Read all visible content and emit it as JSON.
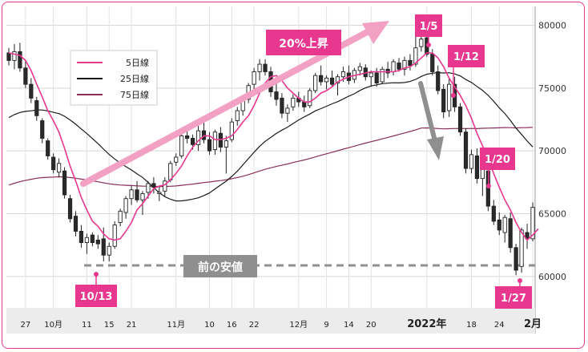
{
  "chart_data": {
    "type": "candlestick",
    "ylim": [
      57500,
      81500
    ],
    "yticks": [
      60000,
      65000,
      70000,
      75000,
      80000
    ],
    "ytick_labels": [
      "60000",
      "65000",
      "70000",
      "75000",
      "80000"
    ],
    "xtick_labels": [
      {
        "i": 3,
        "label": "27"
      },
      {
        "i": 8,
        "label": "10月"
      },
      {
        "i": 14,
        "label": "11"
      },
      {
        "i": 18,
        "label": "15"
      },
      {
        "i": 22,
        "label": "21"
      },
      {
        "i": 30,
        "label": "11月"
      },
      {
        "i": 36,
        "label": "10"
      },
      {
        "i": 40,
        "label": "16"
      },
      {
        "i": 44,
        "label": "22"
      },
      {
        "i": 52,
        "label": "12月"
      },
      {
        "i": 57,
        "label": "9"
      },
      {
        "i": 61,
        "label": "14"
      },
      {
        "i": 65,
        "label": "20"
      },
      {
        "i": 75,
        "label": "2022年",
        "big": true
      },
      {
        "i": 83,
        "label": "18"
      },
      {
        "i": 88,
        "label": "24"
      },
      {
        "i": 94,
        "label": "2月",
        "big": true
      }
    ],
    "legend": [
      {
        "label": "5日線",
        "color": "#e8378f"
      },
      {
        "label": "25日線",
        "color": "#1a1a1a"
      },
      {
        "label": "75日線",
        "color": "#8a2d5a"
      }
    ],
    "candles": [
      [
        77800,
        78200,
        76800,
        77200
      ],
      [
        77200,
        78500,
        76500,
        77900
      ],
      [
        77900,
        78600,
        76300,
        76600
      ],
      [
        76600,
        77200,
        75000,
        75300
      ],
      [
        75300,
        75800,
        73800,
        74200
      ],
      [
        74000,
        74300,
        72400,
        72800
      ],
      [
        72400,
        72600,
        70600,
        71000
      ],
      [
        70800,
        71000,
        69300,
        69600
      ],
      [
        69500,
        69800,
        68200,
        68500
      ],
      [
        68300,
        69400,
        67900,
        69000
      ],
      [
        68400,
        68700,
        66200,
        66500
      ],
      [
        66200,
        66500,
        64300,
        64600
      ],
      [
        64800,
        65200,
        63200,
        63600
      ],
      [
        63600,
        64100,
        62300,
        62700
      ],
      [
        62700,
        63400,
        61800,
        63100
      ],
      [
        63300,
        63500,
        62400,
        62700
      ],
      [
        62900,
        63300,
        62200,
        62600
      ],
      [
        63000,
        63900,
        61200,
        61700
      ],
      [
        61700,
        62700,
        61200,
        62400
      ],
      [
        62400,
        64400,
        62200,
        64100
      ],
      [
        64300,
        65400,
        64000,
        65200
      ],
      [
        65100,
        66400,
        64600,
        66200
      ],
      [
        66200,
        67200,
        65700,
        66900
      ],
      [
        66900,
        67600,
        65900,
        66100
      ],
      [
        66100,
        66800,
        64900,
        66600
      ],
      [
        66700,
        67600,
        66200,
        67400
      ],
      [
        67400,
        67900,
        66600,
        67100
      ],
      [
        66600,
        67200,
        66000,
        66700
      ],
      [
        66800,
        67900,
        66400,
        67600
      ],
      [
        67700,
        69200,
        67500,
        69000
      ],
      [
        69100,
        69800,
        68800,
        69500
      ],
      [
        69600,
        71400,
        69400,
        71200
      ],
      [
        71200,
        71800,
        70600,
        71000
      ],
      [
        71000,
        71300,
        70100,
        70500
      ],
      [
        70500,
        72000,
        70000,
        71600
      ],
      [
        71600,
        72300,
        70600,
        70900
      ],
      [
        70900,
        71500,
        69700,
        70000
      ],
      [
        70100,
        71700,
        69700,
        71500
      ],
      [
        71400,
        71900,
        69900,
        70300
      ],
      [
        70300,
        71200,
        68200,
        70800
      ],
      [
        70900,
        72600,
        70700,
        72300
      ],
      [
        72400,
        73500,
        72000,
        73200
      ],
      [
        73200,
        74400,
        72800,
        74100
      ],
      [
        74100,
        75400,
        73800,
        75200
      ],
      [
        75300,
        76600,
        74800,
        76300
      ],
      [
        76300,
        77300,
        75600,
        76900
      ],
      [
        76900,
        77300,
        76000,
        76300
      ],
      [
        76300,
        76700,
        74300,
        74700
      ],
      [
        74700,
        75500,
        73600,
        74100
      ],
      [
        74200,
        74600,
        72600,
        73000
      ],
      [
        73000,
        73700,
        72300,
        73400
      ],
      [
        73500,
        74500,
        73200,
        74200
      ],
      [
        74200,
        74700,
        73500,
        73900
      ],
      [
        73900,
        74400,
        73100,
        73500
      ],
      [
        73600,
        75000,
        73400,
        74800
      ],
      [
        74800,
        76200,
        74600,
        76000
      ],
      [
        76000,
        76800,
        75200,
        75500
      ],
      [
        75500,
        76000,
        74900,
        75800
      ],
      [
        75800,
        76400,
        75100,
        75300
      ],
      [
        75400,
        76100,
        74400,
        75900
      ],
      [
        75900,
        76700,
        75500,
        76300
      ],
      [
        76200,
        76800,
        75300,
        75600
      ],
      [
        75700,
        76600,
        75400,
        76400
      ],
      [
        76400,
        77000,
        76000,
        76700
      ],
      [
        76600,
        76900,
        75600,
        75900
      ],
      [
        75900,
        76400,
        75100,
        76200
      ],
      [
        76200,
        76600,
        75100,
        75400
      ],
      [
        75500,
        76700,
        75300,
        76500
      ],
      [
        76500,
        77100,
        75800,
        76200
      ],
      [
        76300,
        77300,
        76000,
        77100
      ],
      [
        77000,
        77400,
        76300,
        76500
      ],
      [
        76500,
        77500,
        76000,
        77200
      ],
      [
        77200,
        77700,
        76400,
        76800
      ],
      [
        76900,
        79800,
        76700,
        78200
      ],
      [
        78300,
        79300,
        77900,
        78900
      ],
      [
        79000,
        79300,
        77500,
        77700
      ],
      [
        77700,
        78100,
        76000,
        76300
      ],
      [
        76300,
        76800,
        74500,
        74800
      ],
      [
        74900,
        75300,
        72600,
        73100
      ],
      [
        73200,
        75800,
        72700,
        75300
      ],
      [
        75300,
        75900,
        73100,
        73500
      ],
      [
        73500,
        73800,
        71200,
        71500
      ],
      [
        71500,
        71800,
        68200,
        68600
      ],
      [
        68600,
        70100,
        68200,
        69700
      ],
      [
        69600,
        70200,
        67400,
        67800
      ],
      [
        67800,
        68900,
        66400,
        68600
      ],
      [
        68400,
        68700,
        65200,
        65600
      ],
      [
        65600,
        66100,
        64100,
        64400
      ],
      [
        64500,
        65100,
        63300,
        63700
      ],
      [
        63500,
        64900,
        62700,
        64700
      ],
      [
        64600,
        65100,
        61900,
        62300
      ],
      [
        62300,
        62600,
        60100,
        60500
      ],
      [
        60800,
        63900,
        60300,
        63700
      ],
      [
        63500,
        64200,
        62200,
        63000
      ],
      [
        63000,
        65900,
        62800,
        65500
      ]
    ],
    "ma5": [
      77800,
      77700,
      77600,
      77200,
      76400,
      75300,
      74300,
      73200,
      72400,
      71500,
      70200,
      68800,
      67600,
      66300,
      65300,
      64400,
      64000,
      63400,
      63000,
      62900,
      63000,
      63600,
      64300,
      65300,
      65800,
      66400,
      67000,
      67200,
      67300,
      67700,
      68200,
      68800,
      69600,
      70300,
      70800,
      71200,
      71200,
      70900,
      70900,
      71000,
      71200,
      71700,
      72300,
      72800,
      73600,
      74600,
      75400,
      75900,
      76000,
      75600,
      75000,
      74600,
      74200,
      73900,
      73900,
      74200,
      74600,
      74800,
      75100,
      75500,
      75700,
      75900,
      76000,
      76100,
      76200,
      76300,
      76300,
      76300,
      76300,
      76300,
      76400,
      76600,
      76700,
      77000,
      77400,
      77800,
      77800,
      77400,
      76700,
      75800,
      75100,
      74400,
      73600,
      72600,
      71400,
      70400,
      69400,
      68200,
      67100,
      66100,
      65300,
      64300,
      63500,
      62900,
      63300,
      63800
    ]
  },
  "legend_entries": [
    "5日線",
    "25日線",
    "75日線"
  ],
  "annotations": {
    "trend_up": "20%上昇",
    "prev_low": "前の安値",
    "dates": [
      "10/13",
      "1/5",
      "1/12",
      "1/20",
      "1/27"
    ]
  }
}
